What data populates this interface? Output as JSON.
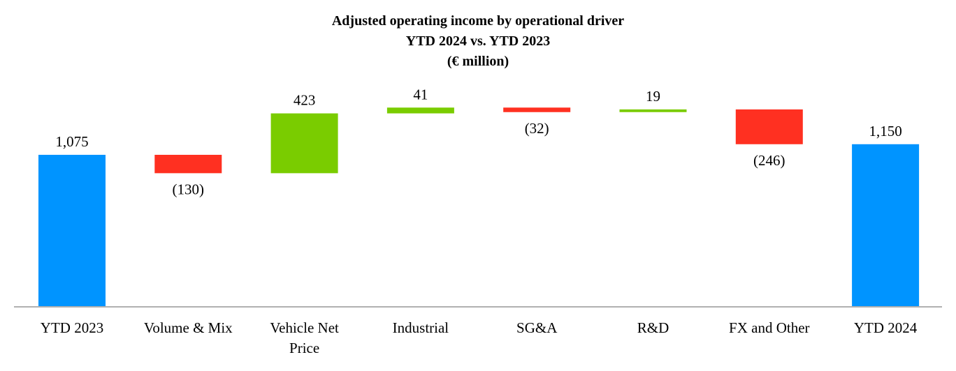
{
  "chart_data": {
    "type": "waterfall",
    "title": [
      "Adjusted operating income by operational driver",
      "YTD 2024 vs. YTD 2023",
      "(€ million)"
    ],
    "categories": [
      "YTD 2023",
      "Volume & Mix",
      "Vehicle Net Price",
      "Industrial",
      "SG&A",
      "R&D",
      "FX and Other",
      "YTD 2024"
    ],
    "category_lines": [
      [
        "YTD 2023"
      ],
      [
        "Volume & Mix"
      ],
      [
        "Vehicle Net",
        "Price"
      ],
      [
        "Industrial"
      ],
      [
        "SG&A"
      ],
      [
        "R&D"
      ],
      [
        "FX and Other"
      ],
      [
        "YTD 2024"
      ]
    ],
    "values": [
      1075,
      -130,
      423,
      41,
      -32,
      19,
      -246,
      1150
    ],
    "kinds": [
      "total",
      "delta",
      "delta",
      "delta",
      "delta",
      "delta",
      "delta",
      "total"
    ],
    "data_labels": [
      "1,075",
      "(130)",
      "423",
      "41",
      "(32)",
      "19",
      "(246)",
      "1,150"
    ],
    "colors": {
      "total": "#0094FF",
      "increase": "#7ACC00",
      "decrease": "#FF3021"
    },
    "ylim": [
      0,
      1409
    ],
    "grid": false,
    "legend": "none"
  }
}
